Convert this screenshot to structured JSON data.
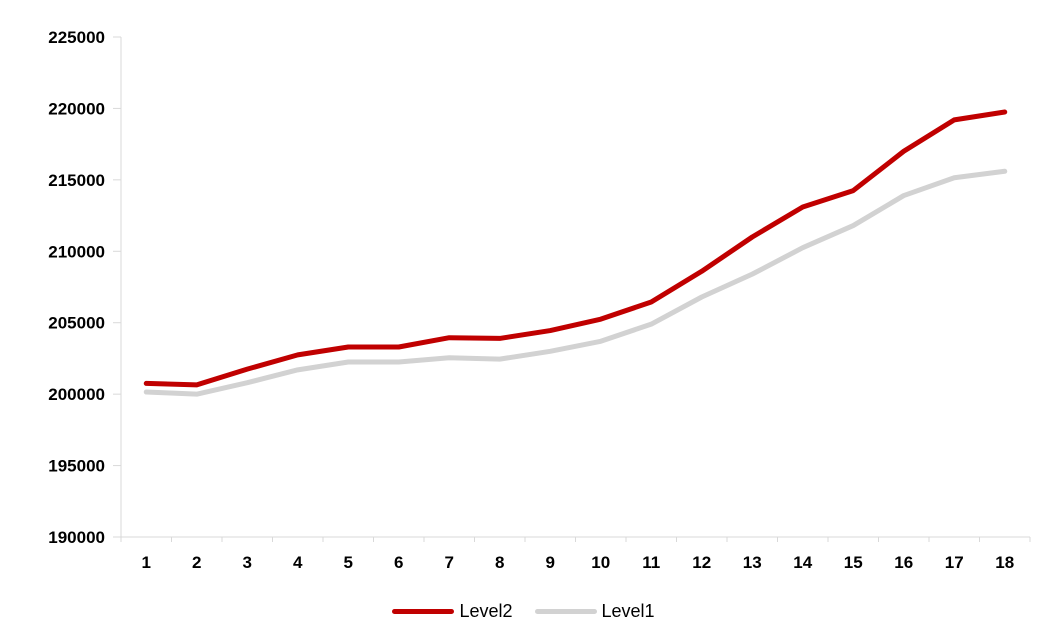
{
  "chart_data": {
    "type": "line",
    "title": "",
    "xlabel": "",
    "ylabel": "",
    "x": [
      "1",
      "2",
      "3",
      "4",
      "5",
      "6",
      "7",
      "8",
      "9",
      "10",
      "11",
      "12",
      "13",
      "14",
      "15",
      "16",
      "17",
      "18"
    ],
    "series": [
      {
        "name": "Level2",
        "color": "#C00000",
        "values": [
          200750,
          200650,
          201750,
          202750,
          203300,
          203300,
          203950,
          203900,
          204450,
          205250,
          206450,
          208600,
          211000,
          213100,
          214250,
          217000,
          219200,
          219750
        ]
      },
      {
        "name": "Level1",
        "color": "#D2D2D2",
        "values": [
          200150,
          200000,
          200800,
          201700,
          202250,
          202250,
          202550,
          202450,
          203000,
          203700,
          204900,
          206800,
          208400,
          210250,
          211800,
          213900,
          215150,
          215600
        ]
      }
    ],
    "ylim": [
      190000,
      225000
    ],
    "yticks": [
      190000,
      195000,
      200000,
      205000,
      210000,
      215000,
      220000,
      225000
    ],
    "ytick_step": 5000,
    "grid": false,
    "legend_position": "bottom",
    "axis_color": "#D9D9D9",
    "label_color": "#000000",
    "line_width": 5
  }
}
